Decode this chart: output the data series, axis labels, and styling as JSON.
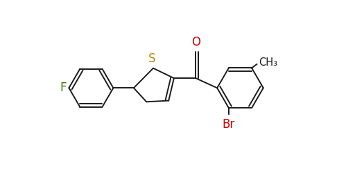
{
  "background": "#ffffff",
  "figsize": [
    5.12,
    2.46
  ],
  "dpi": 100,
  "lw": 1.4,
  "inner_off": 0.11,
  "F_color": "#3a7d00",
  "S_color": "#b8860b",
  "O_color": "#cc0000",
  "Br_color": "#cc0000",
  "bond_color": "#1a1a1a",
  "text_color": "#1a1a1a",
  "xlim": [
    0,
    10.2
  ],
  "ylim": [
    0.3,
    6.0
  ]
}
